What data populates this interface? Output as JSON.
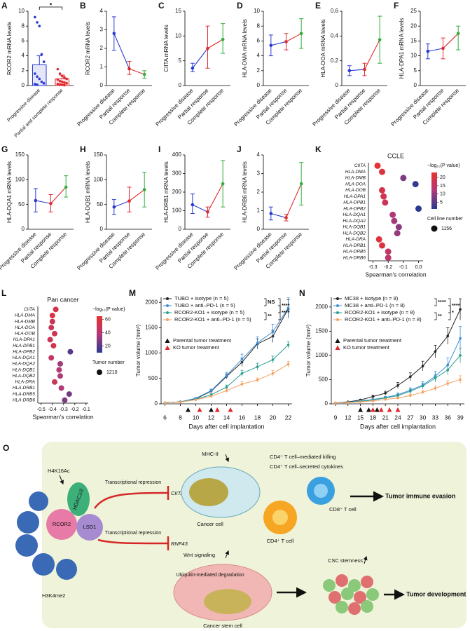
{
  "chart_data": [
    {
      "panel": "A",
      "type": "bar",
      "ylabel": "RCOR2 mRNA levels",
      "categories": [
        "Progressive disease",
        "Partial and complete response"
      ],
      "values": [
        2.8,
        0.9
      ],
      "errors": [
        1.2,
        0.5
      ],
      "points": [
        [
          9.2,
          8.5,
          8.0,
          4.2,
          3.2,
          1.6,
          1.2,
          0.9,
          0.5,
          0.3,
          0.2,
          0.1
        ],
        [
          2.2,
          1.6,
          1.3,
          1.1,
          0.9,
          0.8,
          0.6,
          0.5,
          0.4,
          0.3,
          0.2,
          0.15,
          0.1,
          0.05
        ]
      ],
      "colors": [
        "#2a3ad1",
        "#e0282d"
      ],
      "annotation": "*",
      "ylim": [
        0,
        10
      ],
      "yticks": [
        0,
        2,
        4,
        6,
        8,
        10
      ]
    },
    {
      "panel": "B",
      "type": "line",
      "ylabel": "RCOR2 mRNA levels",
      "categories": [
        "Progressive disease",
        "Partial response",
        "Complete response"
      ],
      "values": [
        2.8,
        0.9,
        0.6
      ],
      "lower": [
        1.9,
        0.6,
        0.4
      ],
      "upper": [
        3.7,
        1.3,
        0.8
      ],
      "colors": [
        "#2a3ad1",
        "#e0282d",
        "#2fae3a"
      ],
      "ylim": [
        0,
        4
      ],
      "yticks": [
        0,
        1,
        2,
        3,
        4
      ]
    },
    {
      "panel": "C",
      "type": "line",
      "ylabel": "CIITA mRNA levels",
      "categories": [
        "Progressive disease",
        "Partial response",
        "Complete response"
      ],
      "values": [
        3.5,
        7.5,
        9.3
      ],
      "lower": [
        2.8,
        3.5,
        6.5
      ],
      "upper": [
        4.5,
        12,
        12.5
      ],
      "colors": [
        "#2a3ad1",
        "#e0282d",
        "#2fae3a"
      ],
      "ylim": [
        0,
        15
      ],
      "yticks": [
        0,
        5,
        10,
        15
      ]
    },
    {
      "panel": "D",
      "type": "line",
      "ylabel": "HLA-DMA mRNA levels",
      "categories": [
        "Progressive disease",
        "Partial response",
        "Complete response"
      ],
      "values": [
        5.4,
        5.9,
        7.0
      ],
      "lower": [
        4.0,
        4.8,
        5.0
      ],
      "upper": [
        6.8,
        7.0,
        9.0
      ],
      "colors": [
        "#2a3ad1",
        "#e0282d",
        "#2fae3a"
      ],
      "ylim": [
        0,
        10
      ],
      "yticks": [
        0,
        2,
        4,
        6,
        8,
        10
      ]
    },
    {
      "panel": "E",
      "type": "line",
      "ylabel": "HLA-DOA mRNA levels",
      "categories": [
        "Progressive disease",
        "Partial response",
        "Complete response"
      ],
      "values": [
        0.12,
        0.13,
        0.37
      ],
      "lower": [
        0.08,
        0.08,
        0.18
      ],
      "upper": [
        0.16,
        0.18,
        0.56
      ],
      "colors": [
        "#2a3ad1",
        "#e0282d",
        "#2fae3a"
      ],
      "ylim": [
        0,
        0.6
      ],
      "yticks": [
        0,
        0.2,
        0.4,
        0.6
      ]
    },
    {
      "panel": "F",
      "type": "line",
      "ylabel": "HLA-DPA1 mRNA levels",
      "categories": [
        "Progressive disease",
        "Partial response",
        "Complete response"
      ],
      "values": [
        11.5,
        12.5,
        17.5
      ],
      "lower": [
        9,
        9,
        12
      ],
      "upper": [
        14,
        16,
        20
      ],
      "colors": [
        "#2a3ad1",
        "#e0282d",
        "#2fae3a"
      ],
      "ylim": [
        0,
        25
      ],
      "yticks": [
        0,
        5,
        10,
        15,
        20,
        25
      ]
    },
    {
      "panel": "G",
      "type": "line",
      "ylabel": "HLA-DQA1 mRNA levels",
      "categories": [
        "Progressive disease",
        "Partial response",
        "Complete response"
      ],
      "values": [
        58,
        52,
        85
      ],
      "lower": [
        35,
        35,
        65
      ],
      "upper": [
        82,
        70,
        108
      ],
      "colors": [
        "#2a3ad1",
        "#e0282d",
        "#2fae3a"
      ],
      "ylim": [
        0,
        150
      ],
      "yticks": [
        0,
        50,
        100,
        150
      ]
    },
    {
      "panel": "H",
      "type": "line",
      "ylabel": "HLA-DQB1 mRNA levels",
      "categories": [
        "Progressive disease",
        "Partial response",
        "Complete response"
      ],
      "values": [
        45,
        57,
        80
      ],
      "lower": [
        30,
        35,
        45
      ],
      "upper": [
        60,
        85,
        115
      ],
      "colors": [
        "#2a3ad1",
        "#e0282d",
        "#2fae3a"
      ],
      "ylim": [
        0,
        150
      ],
      "yticks": [
        0,
        50,
        100,
        150
      ]
    },
    {
      "panel": "I",
      "type": "line",
      "ylabel": "HLA-DRB1 mRNA levels",
      "categories": [
        "Progressive disease",
        "Partial response",
        "Complete response"
      ],
      "values": [
        132,
        93,
        245
      ],
      "lower": [
        85,
        65,
        120
      ],
      "upper": [
        190,
        120,
        370
      ],
      "colors": [
        "#2a3ad1",
        "#e0282d",
        "#2fae3a"
      ],
      "ylim": [
        0,
        400
      ],
      "yticks": [
        0,
        100,
        200,
        300,
        400
      ]
    },
    {
      "panel": "J",
      "type": "line",
      "ylabel": "HLA-DRB6 mRNA levels",
      "categories": [
        "Progressive disease",
        "Partial response",
        "Complete response"
      ],
      "values": [
        0.85,
        0.62,
        2.45
      ],
      "lower": [
        0.5,
        0.45,
        1.3
      ],
      "upper": [
        1.2,
        0.8,
        3.6
      ],
      "colors": [
        "#2a3ad1",
        "#e0282d",
        "#2fae3a"
      ],
      "ylim": [
        0,
        4
      ],
      "yticks": [
        0,
        1,
        2,
        3,
        4
      ]
    },
    {
      "panel": "K",
      "type": "dot",
      "title": "CCLE",
      "xlabel": "Spearman's correlation",
      "categories": [
        "CIITA",
        "HLA-DMA",
        "HLA-DMB",
        "HLA-DOA",
        "HLA-DOB",
        "HLA-DPA1",
        "HLA-DPB1",
        "HLA-DPB2",
        "HLA-DQA1",
        "HLA-DQA2",
        "HLA-DQB1",
        "HLA-DQB2",
        "HLA-DRA",
        "HLA-DRB1",
        "HLA-DRB5",
        "HLA-DRB6"
      ],
      "values": [
        -0.27,
        -0.24,
        -0.1,
        -0.02,
        -0.24,
        -0.23,
        -0.22,
        0.0,
        -0.17,
        -0.16,
        -0.13,
        -0.14,
        -0.26,
        -0.24,
        -0.2,
        -0.2
      ],
      "pvalues": [
        22,
        20,
        8,
        2,
        19,
        18,
        17,
        1,
        12,
        11,
        9,
        10,
        21,
        20,
        15,
        14
      ],
      "xlim": [
        -0.33,
        0.03
      ],
      "xticks": [
        -0.3,
        -0.2,
        -0.1,
        {
          "value": 0,
          "label": "0.0"
        }
      ],
      "color_title": "−log₁₀(P value)",
      "clim": [
        1,
        23
      ],
      "cticks": [
        5,
        10,
        15,
        20
      ],
      "colormap": [
        "#283a90",
        "#b03a78",
        "#e8312f"
      ],
      "size_title": "Cell line number",
      "size_value": 1156
    },
    {
      "panel": "L",
      "type": "dot",
      "title": "Pan cancer",
      "xlabel": "Spearman's correlation",
      "categories": [
        "CIITA",
        "HLA-DMA",
        "HLA-DMB",
        "HLA-DOA",
        "HLA-DOB",
        "HLA-DPA1",
        "HLA-DPB1",
        "HLA-DPB2",
        "HLA-DQA1",
        "HLA-DQA2",
        "HLA-DQB1",
        "HLA-DQB2",
        "HLA-DRA",
        "HLA-DRB1",
        "HLA-DRB5",
        "HLA-DRB6"
      ],
      "values": [
        -0.37,
        -0.4,
        -0.4,
        -0.41,
        -0.38,
        -0.42,
        -0.39,
        -0.24,
        -0.41,
        -0.33,
        -0.34,
        -0.33,
        -0.38,
        -0.32,
        -0.25,
        -0.29
      ],
      "pvalues": [
        55,
        58,
        50,
        48,
        52,
        50,
        55,
        20,
        45,
        35,
        40,
        38,
        50,
        38,
        25,
        28
      ],
      "xlim": [
        -0.53,
        -0.08
      ],
      "xticks": [
        -0.5,
        -0.4,
        -0.3,
        -0.2,
        -0.1
      ],
      "color_title": "−log₁₀(P value)",
      "clim": [
        10,
        65
      ],
      "cticks": [
        20,
        40,
        60
      ],
      "colormap": [
        "#283a90",
        "#b03a78",
        "#e8312f"
      ],
      "size_title": "Tumor number",
      "size_value": 1210
    },
    {
      "panel": "M",
      "type": "timeline",
      "ylabel": "Tumor volume (mm³)",
      "xlabel": "Days after cell implantation",
      "x": [
        6,
        8,
        10,
        12,
        14,
        16,
        18,
        20,
        22
      ],
      "xlim": [
        5.5,
        22.5
      ],
      "xticks": [
        6,
        8,
        10,
        12,
        14,
        16,
        18,
        20,
        22
      ],
      "ylim": [
        0,
        2100
      ],
      "yticks": [
        0,
        500,
        1000,
        1500,
        2000
      ],
      "series": [
        {
          "name": "TUBO + isotype (n = 5)",
          "color": "#222222",
          "values": [
            20,
            40,
            100,
            250,
            540,
            820,
            1180,
            1330,
            1870
          ],
          "errors": [
            5,
            8,
            15,
            25,
            50,
            80,
            100,
            120,
            180
          ]
        },
        {
          "name": "TUBO + anti–PD-1 (n = 5)",
          "color": "#3f8fd6",
          "values": [
            20,
            40,
            110,
            260,
            560,
            880,
            1200,
            1420,
            1890
          ],
          "errors": [
            5,
            8,
            15,
            30,
            60,
            100,
            120,
            150,
            200
          ]
        },
        {
          "name": "RCOR2-KO1 + isotype (n = 5)",
          "color": "#2a9d8f",
          "values": [
            20,
            40,
            90,
            180,
            330,
            600,
            730,
            870,
            1160
          ],
          "errors": [
            5,
            8,
            12,
            20,
            40,
            60,
            70,
            70,
            60
          ]
        },
        {
          "name": "RCOR2-KO1 + anti–PD-1 (n = 5)",
          "color": "#f4a261",
          "values": [
            20,
            35,
            80,
            150,
            260,
            390,
            470,
            600,
            780
          ],
          "errors": [
            5,
            6,
            10,
            15,
            35,
            50,
            40,
            60,
            60
          ]
        }
      ],
      "significance": [
        "NS",
        "****",
        "**",
        "****"
      ],
      "treatments": [
        {
          "name": "Parental tumor treatment",
          "color": "#111111",
          "days": [
            9,
            12
          ]
        },
        {
          "name": "KO tumor treatment",
          "color": "#e0282d",
          "days": [
            10.5,
            12.8,
            14.5
          ]
        }
      ]
    },
    {
      "panel": "N",
      "type": "timeline",
      "ylabel": "Tumor volume (mm³)",
      "xlabel": "Days after cell implantation",
      "x": [
        9,
        12,
        15,
        18,
        21,
        24,
        27,
        30,
        33,
        36,
        39
      ],
      "xlim": [
        8,
        40
      ],
      "xticks": [
        9,
        12,
        15,
        18,
        21,
        24,
        27,
        30,
        33,
        36,
        39
      ],
      "ylim": [
        0,
        2200
      ],
      "yticks": [
        0,
        500,
        1000,
        1500,
        2000
      ],
      "series": [
        {
          "name": "MC38 + isotype (n = 8)",
          "color": "#222222",
          "values": [
            20,
            40,
            80,
            150,
            220,
            380,
            560,
            780,
            1080,
            1400,
            1950
          ],
          "errors": [
            5,
            8,
            15,
            25,
            40,
            60,
            80,
            100,
            130,
            170,
            220
          ]
        },
        {
          "name": "MC38 + anti–PD-1 (n = 8)",
          "color": "#3f8fd6",
          "values": [
            20,
            30,
            60,
            90,
            130,
            190,
            280,
            390,
            570,
            800,
            1350
          ],
          "errors": [
            5,
            6,
            10,
            15,
            25,
            35,
            50,
            70,
            100,
            150,
            250
          ]
        },
        {
          "name": "RCOR2-KO1 + isotype (n = 8)",
          "color": "#2a9d8f",
          "values": [
            20,
            30,
            50,
            80,
            120,
            170,
            260,
            370,
            530,
            700,
            1000
          ],
          "errors": [
            5,
            6,
            8,
            12,
            20,
            30,
            45,
            60,
            80,
            100,
            150
          ]
        },
        {
          "name": "RCOR2-KO1 + anti–PD-1 (n = 8)",
          "color": "#f4a261",
          "values": [
            20,
            25,
            40,
            60,
            90,
            120,
            170,
            240,
            320,
            420,
            500
          ],
          "errors": [
            4,
            5,
            8,
            10,
            15,
            20,
            30,
            40,
            50,
            60,
            80
          ]
        }
      ],
      "significance": [
        "****",
        "****",
        "**",
        "*"
      ],
      "treatments": [
        {
          "name": "Parental tumor treatment",
          "color": "#111111",
          "days": [
            15,
            17,
            19
          ]
        },
        {
          "name": "KO tumor treatment",
          "color": "#e0282d",
          "days": [
            18,
            20,
            22,
            24
          ]
        }
      ]
    }
  ],
  "diagram": {
    "panel": "O",
    "h4k16ac": "H4K16Ac",
    "h3k4me2": "H3K4me2",
    "rcor2": "RCOR2",
    "hdac": "HDAC1/2",
    "lsd1": "LSD1",
    "repression1": "Transcriptional repression",
    "repression2": "Transcriptional repression",
    "ciita": "CIITA",
    "rnf43": "RNF43",
    "mhc": "MHC-II",
    "killing": "CD4⁺ T cell–mediated killing",
    "cytokines": "CD4⁺ T cell–secreted cytokines",
    "cancer_cell": "Cancer cell",
    "cd8": "CD8⁺ T cell",
    "cd4": "CD4⁺ T cell",
    "evasion": "Tumor immune evasion",
    "wnt": "Wnt signaling",
    "ubiquitin": "Ubiquitin-mediated degradation",
    "stem_cell": "Cancer stem cell",
    "stemness": "CSC stemness",
    "development": "Tumor development"
  }
}
